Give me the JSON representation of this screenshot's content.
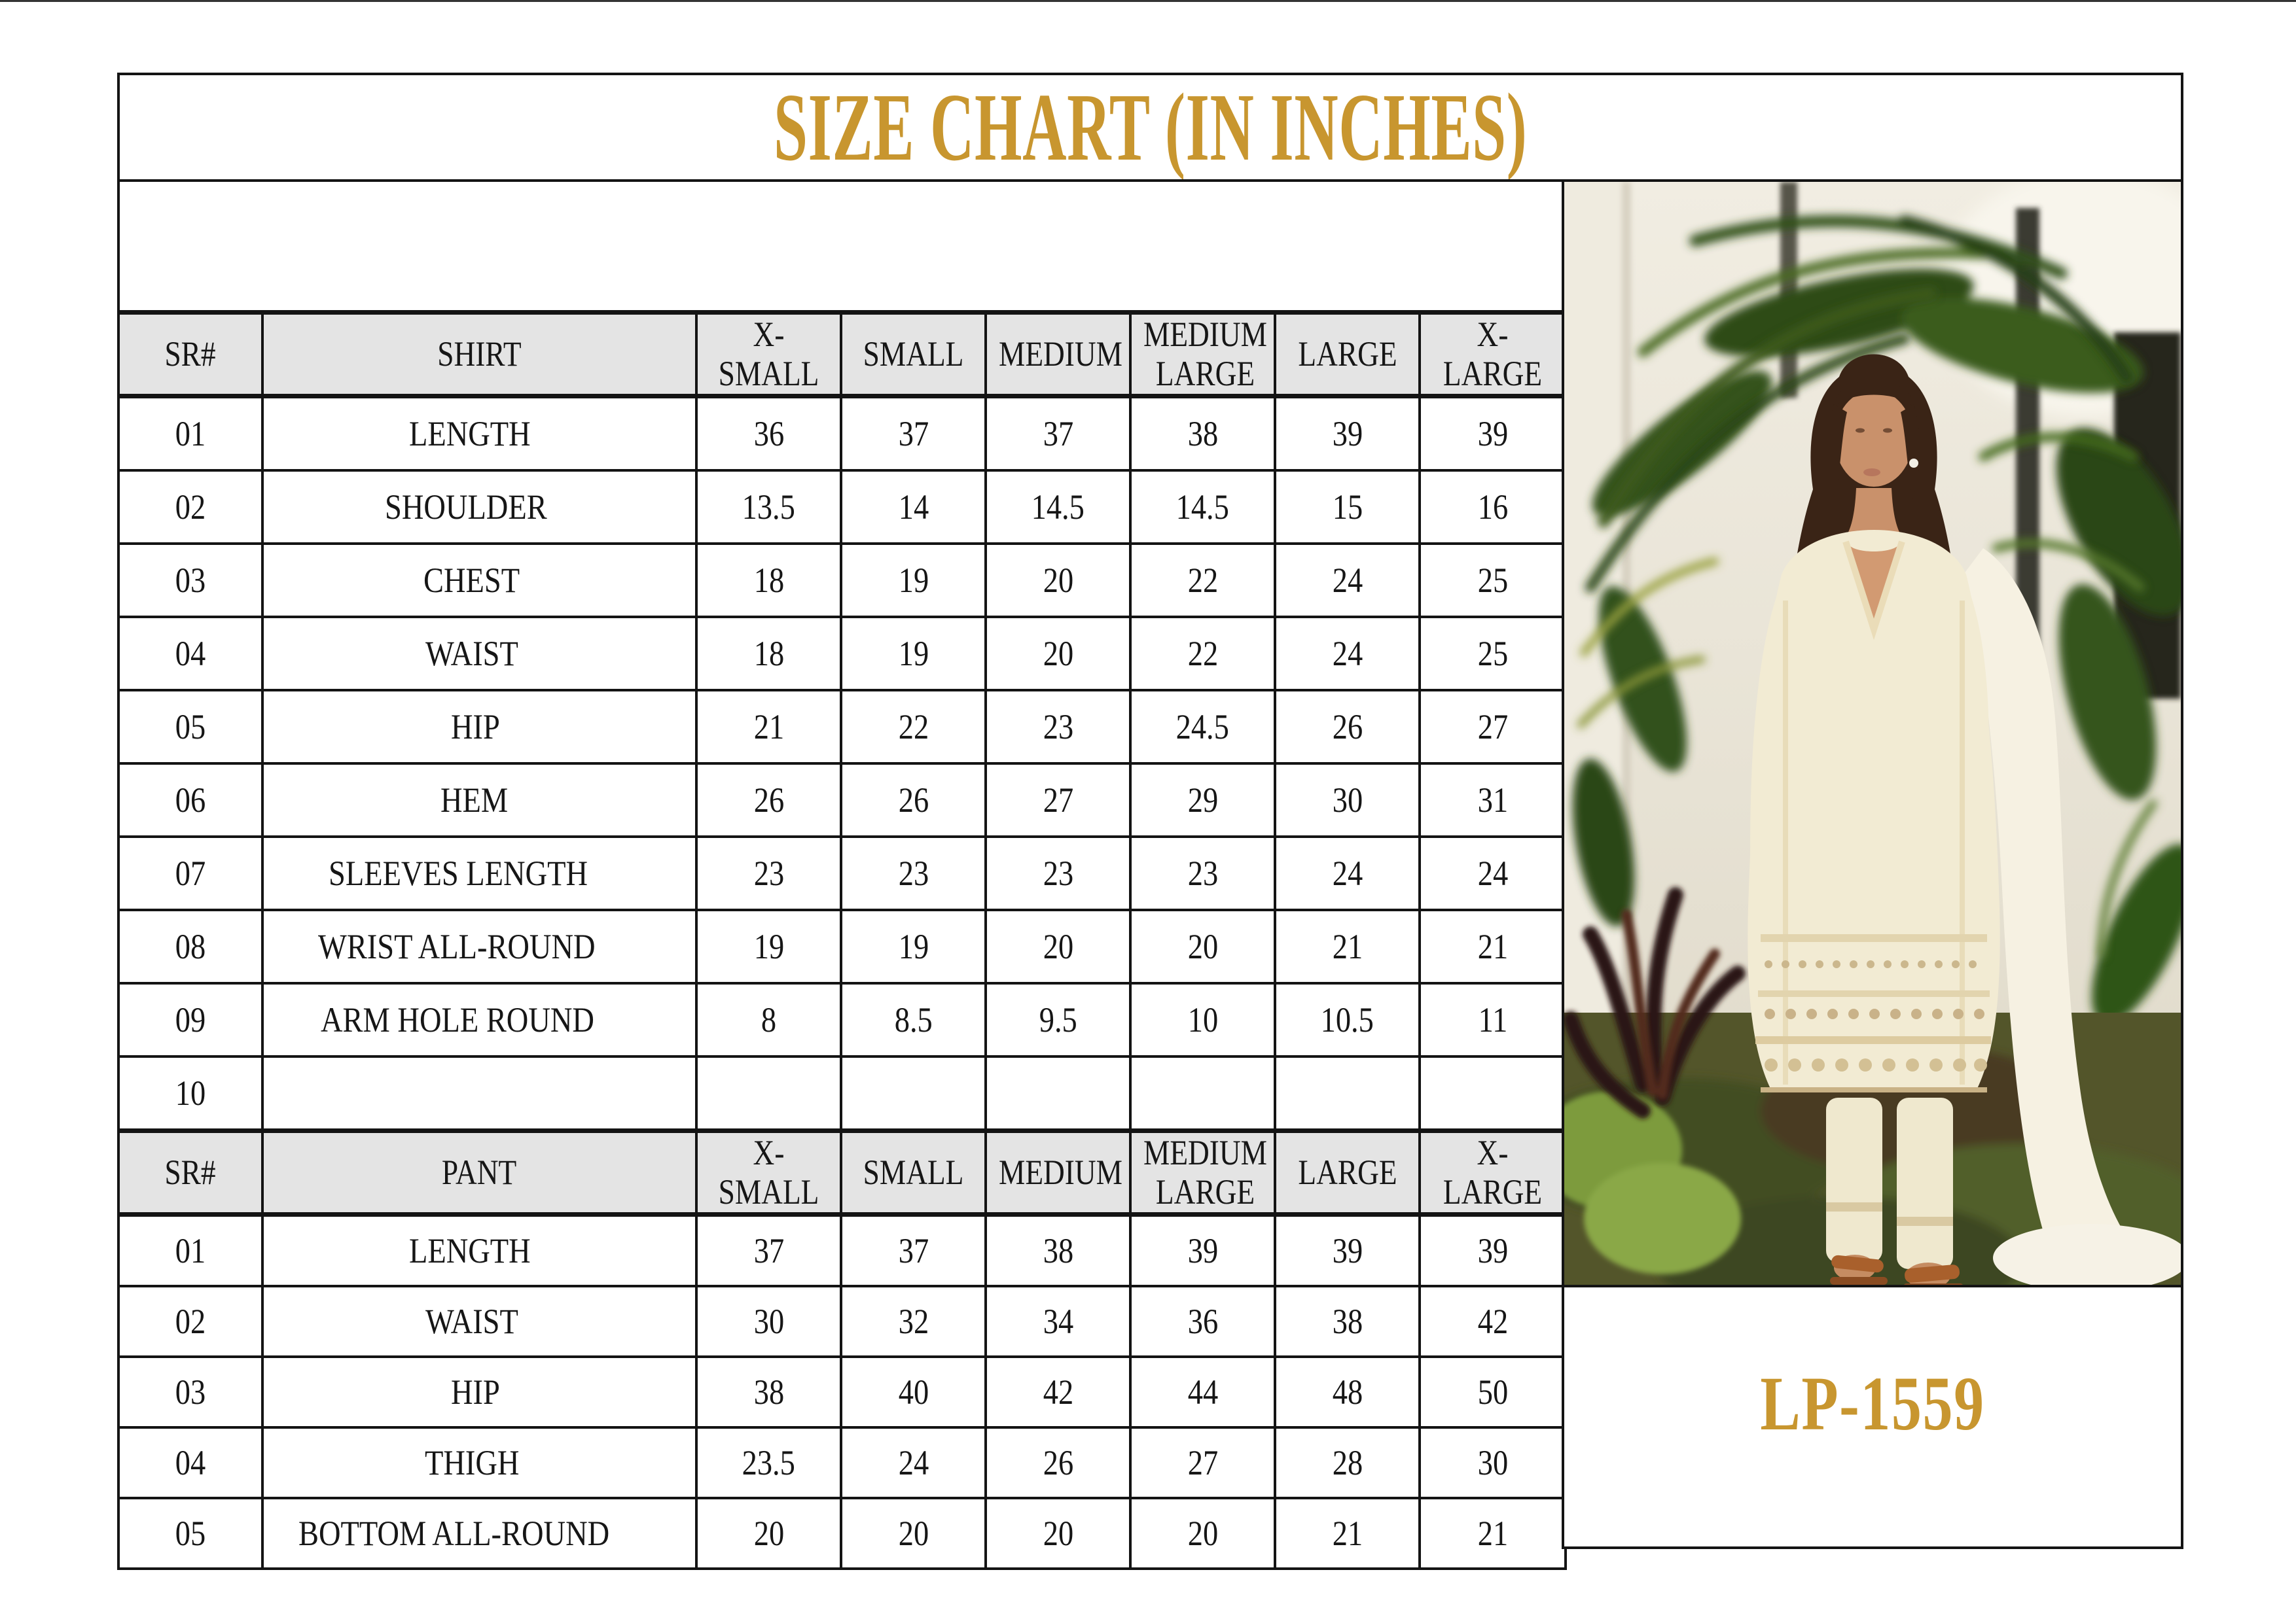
{
  "page": {
    "title": "SIZE CHART (IN INCHES)",
    "product_code": "LP-1559",
    "accent_color": "#C8962F",
    "table_header_bg": "#E4E4E4",
    "border_color": "#141414"
  },
  "shirt_table": {
    "headers": [
      "SR#",
      "SHIRT",
      "X-SMALL",
      "SMALL",
      "MEDIUM",
      "MEDIUM LARGE",
      "LARGE",
      "X-LARGE"
    ],
    "rows": [
      {
        "sr": "01",
        "label": "LENGTH",
        "values": [
          "36",
          "37",
          "37",
          "38",
          "39",
          "39"
        ]
      },
      {
        "sr": "02",
        "label": "SHOULDER",
        "values": [
          "13.5",
          "14",
          "14.5",
          "14.5",
          "15",
          "16"
        ]
      },
      {
        "sr": "03",
        "label": "CHEST",
        "values": [
          "18",
          "19",
          "20",
          "22",
          "24",
          "25"
        ]
      },
      {
        "sr": "04",
        "label": "WAIST",
        "values": [
          "18",
          "19",
          "20",
          "22",
          "24",
          "25"
        ]
      },
      {
        "sr": "05",
        "label": "HIP",
        "values": [
          "21",
          "22",
          "23",
          "24.5",
          "26",
          "27"
        ]
      },
      {
        "sr": "06",
        "label": "HEM",
        "values": [
          "26",
          "26",
          "27",
          "29",
          "30",
          "31"
        ]
      },
      {
        "sr": "07",
        "label": "SLEEVES LENGTH",
        "values": [
          "23",
          "23",
          "23",
          "23",
          "24",
          "24"
        ]
      },
      {
        "sr": "08",
        "label": "WRIST ALL-ROUND",
        "values": [
          "19",
          "19",
          "20",
          "20",
          "21",
          "21"
        ]
      },
      {
        "sr": "09",
        "label": "ARM HOLE ROUND",
        "values": [
          "8",
          "8.5",
          "9.5",
          "10",
          "10.5",
          "11"
        ]
      },
      {
        "sr": "10",
        "label": "",
        "values": [
          "",
          "",
          "",
          "",
          "",
          ""
        ]
      }
    ]
  },
  "pant_table": {
    "headers": [
      "SR#",
      "PANT",
      "X-SMALL",
      "SMALL",
      "MEDIUM",
      "MEDIUM LARGE",
      "LARGE",
      "X-LARGE"
    ],
    "rows": [
      {
        "sr": "01",
        "label": "LENGTH",
        "values": [
          "37",
          "37",
          "38",
          "39",
          "39",
          "39"
        ]
      },
      {
        "sr": "02",
        "label": "WAIST",
        "values": [
          "30",
          "32",
          "34",
          "36",
          "38",
          "42"
        ]
      },
      {
        "sr": "03",
        "label": "HIP",
        "values": [
          "38",
          "40",
          "42",
          "44",
          "48",
          "50"
        ]
      },
      {
        "sr": "04",
        "label": "THIGH",
        "values": [
          "23.5",
          "24",
          "26",
          "27",
          "28",
          "30"
        ]
      },
      {
        "sr": "05",
        "label": "BOTTOM ALL-ROUND",
        "values": [
          "20",
          "20",
          "20",
          "20",
          "21",
          "21"
        ]
      }
    ]
  }
}
